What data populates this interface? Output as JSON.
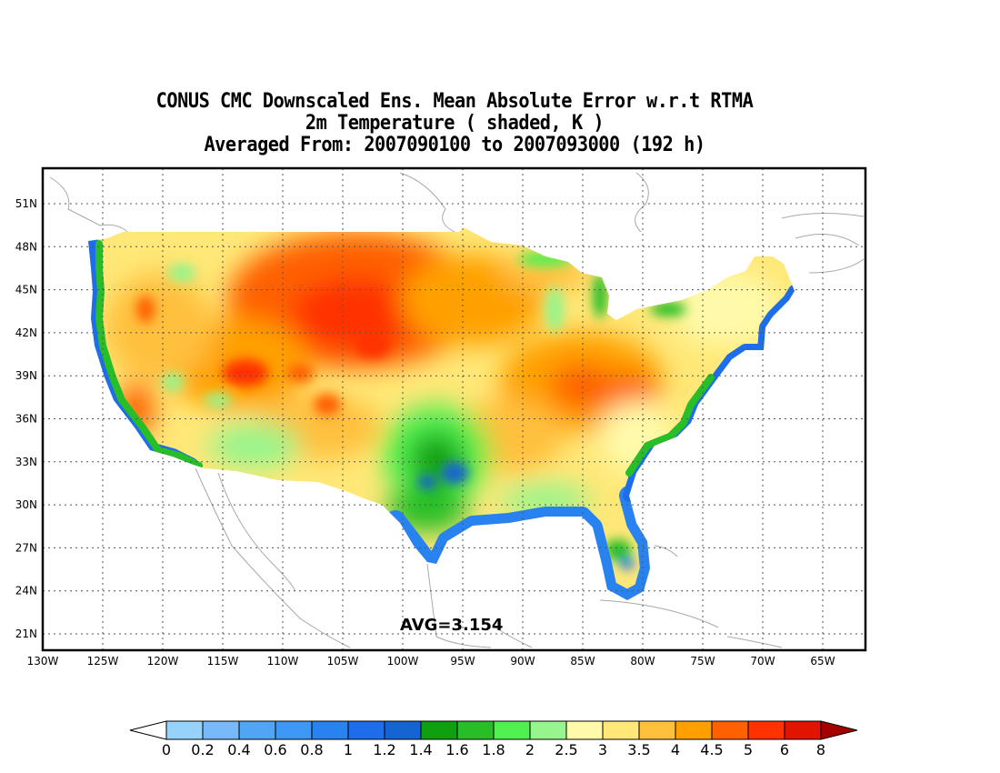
{
  "title": {
    "line1": "CONUS CMC Downscaled Ens. Mean Absolute Error w.r.t RTMA",
    "line2": "2m Temperature ( shaded, K )",
    "line3": "Averaged From: 2007090100 to 2007093000 (192 h)"
  },
  "annotation": {
    "avg_text": "AVG=3.154"
  },
  "axes": {
    "lat_labels": [
      "51N",
      "48N",
      "45N",
      "42N",
      "39N",
      "36N",
      "33N",
      "30N",
      "27N",
      "24N",
      "21N"
    ],
    "lon_labels": [
      "130W",
      "125W",
      "120W",
      "115W",
      "110W",
      "105W",
      "100W",
      "95W",
      "90W",
      "85W",
      "80W",
      "75W",
      "70W",
      "65W"
    ],
    "grid": true
  },
  "colorbar": {
    "labels": [
      "0",
      "0.2",
      "0.4",
      "0.6",
      "0.8",
      "1",
      "1.2",
      "1.4",
      "1.6",
      "1.8",
      "2",
      "2.5",
      "3",
      "3.5",
      "4",
      "4.5",
      "5",
      "6",
      "8"
    ],
    "colors": [
      "#96d2fa",
      "#78b9fa",
      "#50a5f5",
      "#3c97f5",
      "#2882f0",
      "#1e6eeb",
      "#1464d2",
      "#0fa00f",
      "#28be28",
      "#50f050",
      "#96f58c",
      "#fffaaa",
      "#ffe878",
      "#ffc03c",
      "#ffa000",
      "#ff6000",
      "#ff3200",
      "#e11400",
      "#c00000"
    ],
    "under_color": "#ffffff",
    "over_color": "#a50000"
  },
  "map": {
    "colors": {
      "background": "#ffffff",
      "coast": "#a8a8a8",
      "grid": "#555555"
    }
  }
}
